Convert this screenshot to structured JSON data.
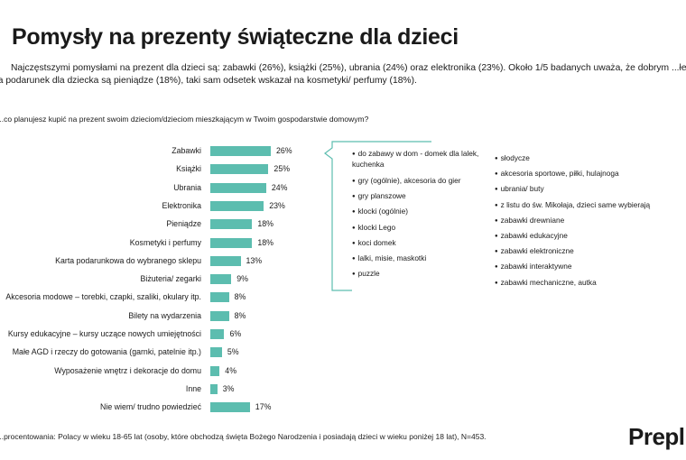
{
  "title": "Pomysły na prezenty świąteczne dla dzieci",
  "intro": "Najczęstszymi pomysłami na prezent dla dzieci są: zabawki (26%), książki (25%), ubrania (24%) oraz elektronika (23%). Około 1/5 badanych uważa, że dobrym ...łem na podarunek dla dziecka są pieniądze (18%), taki sam odsetek wskazał na kosmetyki/ perfumy (18%).",
  "question": "...co planujesz kupić na prezent swoim dzieciom/dzieciom mieszkającym w Twoim gospodarstwie domowym?",
  "chart_data": {
    "type": "bar",
    "orientation": "horizontal",
    "categories": [
      "Zabawki",
      "Książki",
      "Ubrania",
      "Elektronika",
      "Pieniądze",
      "Kosmetyki i perfumy",
      "Karta podarunkowa do wybranego sklepu",
      "Biżuteria/ zegarki",
      "Akcesoria modowe – torebki, czapki, szaliki, okulary itp.",
      "Bilety na wydarzenia",
      "Kursy edukacyjne – kursy uczące nowych umiejętności",
      "Małe AGD i rzeczy do gotowania (garnki, patelnie itp.)",
      "Wyposażenie wnętrz i dekoracje do domu",
      "Inne",
      "Nie wiem/ trudno powiedzieć"
    ],
    "values": [
      26,
      25,
      24,
      23,
      18,
      18,
      13,
      9,
      8,
      8,
      6,
      5,
      4,
      3,
      17
    ],
    "value_labels": [
      "26%",
      "25%",
      "24%",
      "23%",
      "18%",
      "18%",
      "13%",
      "9%",
      "8%",
      "8%",
      "6%",
      "5%",
      "4%",
      "3%",
      "17%"
    ],
    "bar_color": "#5cbdaf",
    "xlim": [
      0,
      30
    ]
  },
  "details": {
    "col1": [
      "do zabawy w dom - domek dla lalek, kuchenka",
      "gry (ogólnie), akcesoria do gier",
      "gry planszowe",
      "klocki (ogólnie)",
      "klocki Lego",
      "koci domek",
      "lalki, misie, maskotki",
      "puzzle"
    ],
    "col2": [
      "słodycze",
      "akcesoria sportowe, piłki, hulajnoga",
      "ubrania/ buty",
      "z listu do św. Mikołaja, dzieci same wybierają",
      "zabawki drewniane",
      "zabawki edukacyjne",
      "zabawki elektroniczne",
      "zabawki interaktywne",
      "zabawki mechaniczne, autka"
    ]
  },
  "footnote": "...procentowania: Polacy w wieku 18-65 lat (osoby, które obchodzą święta Bożego Narodzenia i posiadają dzieci w wieku poniżej 18 lat), N=453.",
  "logo": "Prepl"
}
